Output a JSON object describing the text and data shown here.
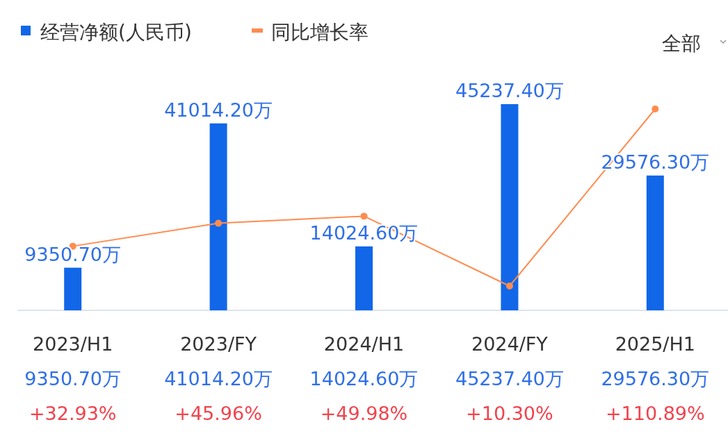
{
  "chart_data": {
    "type": "bar",
    "categories": [
      "2023/H1",
      "2023/FY",
      "2024/H1",
      "2024/FY",
      "2025/H1"
    ],
    "series": [
      {
        "name": "经营净额(人民币)",
        "color": "#1167e8",
        "values": [
          9350.7,
          41014.2,
          14024.6,
          45237.4,
          29576.3
        ],
        "value_labels": [
          "9350.70万",
          "41014.20万",
          "14024.60万",
          "45237.40万",
          "29576.30万"
        ]
      },
      {
        "name": "同比增长率",
        "type": "line",
        "axis": "y2",
        "color": "#ff8c4f",
        "values": [
          32.93,
          45.96,
          49.98,
          10.3,
          110.89
        ],
        "value_labels": [
          "+32.93%",
          "+45.96%",
          "+49.98%",
          "+10.30%",
          "+110.89%"
        ]
      }
    ],
    "legend": "top left",
    "marker": "circle",
    "annotations": [
      "全部"
    ]
  }
}
